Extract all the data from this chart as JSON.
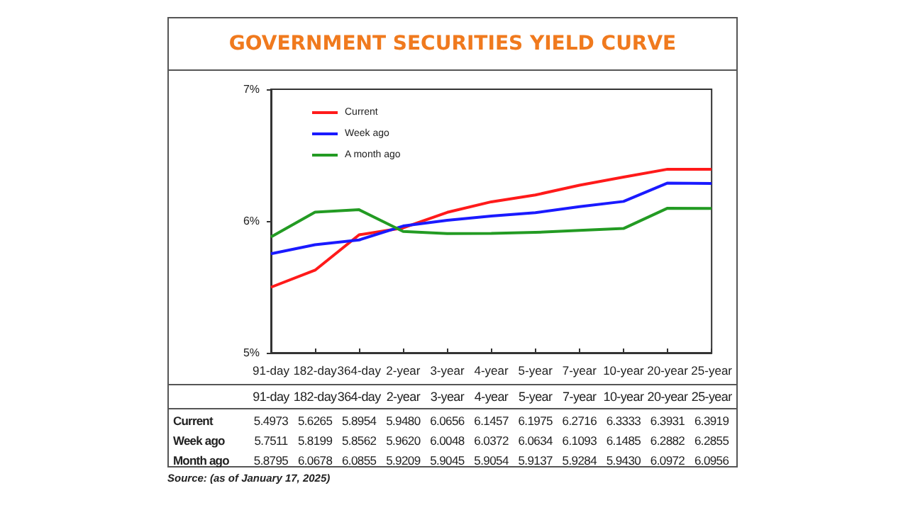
{
  "chart_data": {
    "type": "line",
    "title": "GOVERNMENT SECURITIES YIELD CURVE",
    "categories": [
      "91-day",
      "182-day",
      "364-day",
      "2-year",
      "3-year",
      "4-year",
      "5-year",
      "7-year",
      "10-year",
      "20-year",
      "25-year"
    ],
    "series": [
      {
        "name": "Current",
        "color": "#ff1a1a",
        "values": [
          5.4973,
          5.6265,
          5.8954,
          5.948,
          6.0656,
          6.1457,
          6.1975,
          6.2716,
          6.3333,
          6.3931,
          6.3919
        ],
        "value_labels": [
          "5.4973",
          "5.6265",
          "5.8954",
          "5.9480",
          "6.0656",
          "6.1457",
          "6.1975",
          "6.2716",
          "6.3333",
          "6.3931",
          "6.3919"
        ]
      },
      {
        "name": "Week ago",
        "color": "#1a1aff",
        "values": [
          5.7511,
          5.8199,
          5.8562,
          5.962,
          6.0048,
          6.0372,
          6.0634,
          6.1093,
          6.1485,
          6.2882,
          6.2855
        ],
        "value_labels": [
          "5.7511",
          "5.8199",
          "5.8562",
          "5.9620",
          "6.0048",
          "6.0372",
          "6.0634",
          "6.1093",
          "6.1485",
          "6.2882",
          "6.2855"
        ]
      },
      {
        "name": "A month ago",
        "color": "#239b23",
        "values": [
          5.8795,
          6.0678,
          6.0855,
          5.9209,
          5.9045,
          5.9054,
          5.9137,
          5.9284,
          5.943,
          6.0972,
          6.0956
        ],
        "value_labels": [
          "5.8795",
          "6.0678",
          "6.0855",
          "5.9209",
          "5.9045",
          "5.9054",
          "5.9137",
          "5.9284",
          "5.9430",
          "6.0972",
          "6.0956"
        ]
      }
    ],
    "ylim": [
      5,
      7
    ],
    "yticks": [
      {
        "value": 5,
        "label": "5%"
      },
      {
        "value": 6,
        "label": "6%"
      },
      {
        "value": 7,
        "label": "7%"
      }
    ],
    "grid": false,
    "legend": "top left",
    "marker": "none",
    "line_style": "solid",
    "annotations": [
      "Current",
      "Week ago",
      "Month ago",
      "Source: (as of January 17, 2025)"
    ]
  }
}
